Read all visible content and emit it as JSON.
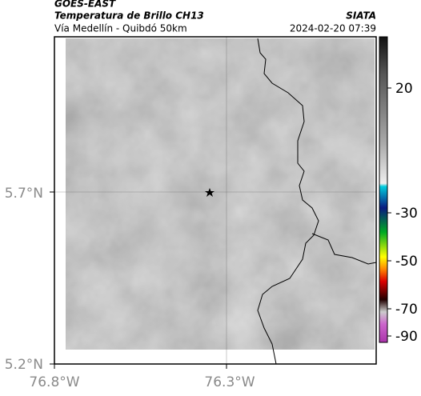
{
  "header": {
    "title": "GOES-EAST",
    "subtitle": "Temperatura de Brillo CH13",
    "source": "SIATA",
    "location": "Vía Medellín - Quibdó 50km",
    "timestamp": "2024-02-20 07:39"
  },
  "map": {
    "lat_labels": [
      "5.7°N",
      "5.2°N"
    ],
    "lon_labels": [
      "76.8°W",
      "76.3°W"
    ]
  },
  "colorbar": {
    "ticks": [
      20,
      -30,
      -50,
      -70,
      -90
    ]
  }
}
